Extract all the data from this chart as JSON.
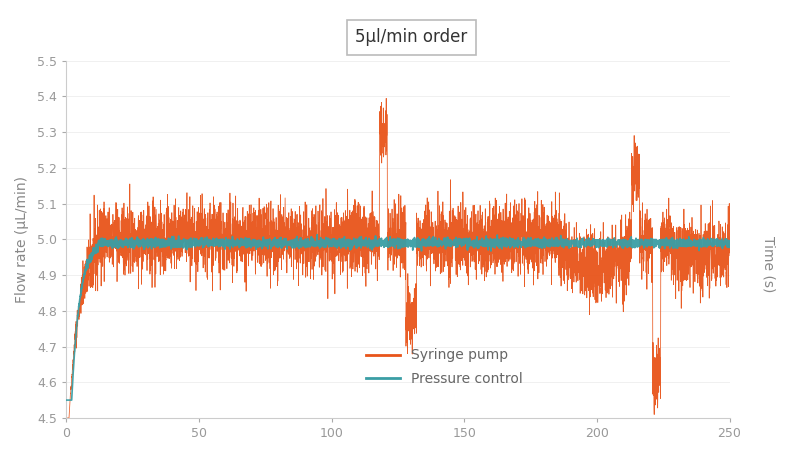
{
  "title": "5µl/min order",
  "ylabel": "Flow rate (µL/min)",
  "xlabel": "Time (s)",
  "ylim": [
    4.5,
    5.5
  ],
  "xlim": [
    0,
    250
  ],
  "yticks": [
    4.5,
    4.6,
    4.7,
    4.8,
    4.9,
    5.0,
    5.1,
    5.2,
    5.3,
    5.4,
    5.5
  ],
  "xticks": [
    0,
    50,
    100,
    150,
    200,
    250
  ],
  "syringe_color": "#E8541A",
  "pressure_color": "#3a9ea5",
  "background_color": "#ffffff",
  "legend_labels": [
    "Syringe pump",
    "Pressure control"
  ],
  "n_points": 5000,
  "seed": 42
}
